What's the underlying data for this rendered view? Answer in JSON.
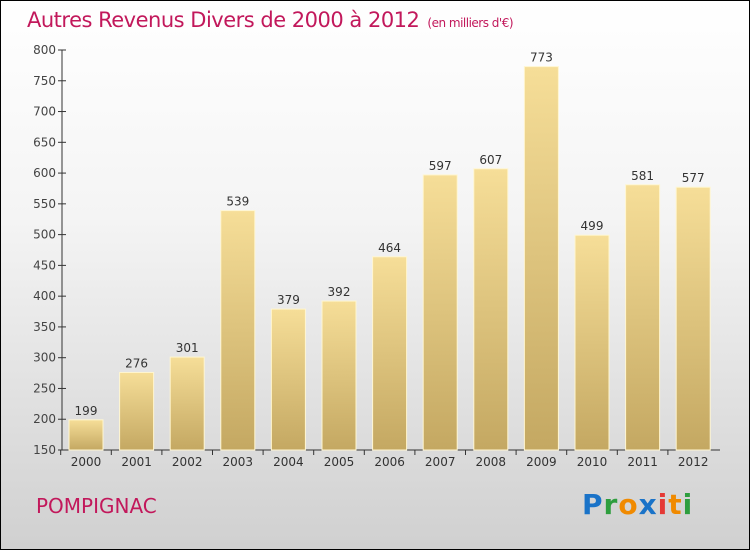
{
  "chart_data": {
    "type": "bar",
    "title": "Autres Revenus Divers de 2000 à 2012",
    "subtitle": "(en milliers d'€)",
    "categories": [
      "2000",
      "2001",
      "2002",
      "2003",
      "2004",
      "2005",
      "2006",
      "2007",
      "2008",
      "2009",
      "2010",
      "2011",
      "2012"
    ],
    "values": [
      199,
      276,
      301,
      539,
      379,
      392,
      464,
      597,
      607,
      773,
      499,
      581,
      577
    ],
    "ylim": [
      150,
      800
    ],
    "yticks": [
      150,
      200,
      250,
      300,
      350,
      400,
      450,
      500,
      550,
      600,
      650,
      700,
      750,
      800
    ],
    "xlabel": "",
    "ylabel": "",
    "grid": false
  },
  "footer": {
    "city": "POMPIGNAC",
    "logo": "Proxiti"
  },
  "colors": {
    "title": "#c2185b",
    "bar_top": "#f5dc96",
    "bar_bottom": "#c4a860"
  }
}
